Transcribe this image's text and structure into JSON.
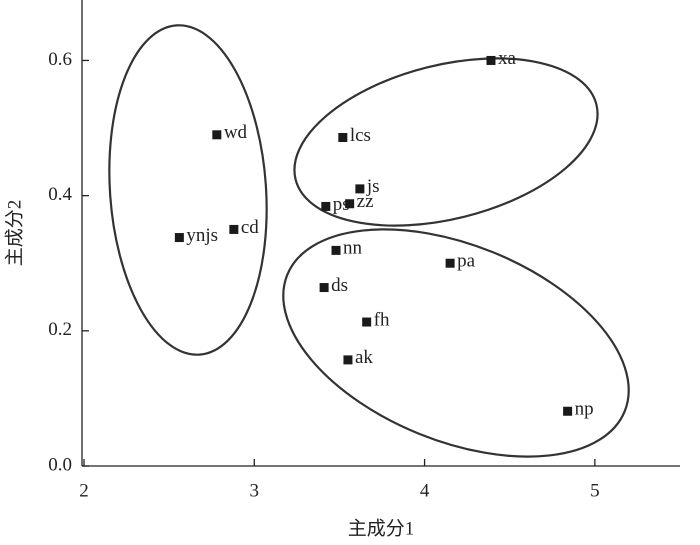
{
  "chart_data": {
    "type": "scatter",
    "xlabel": "主成分1",
    "ylabel": "主成分2",
    "x": [
      4.39,
      2.78,
      3.52,
      3.62,
      3.42,
      3.56,
      2.56,
      2.88,
      3.48,
      4.15,
      3.41,
      3.66,
      3.55,
      4.84
    ],
    "values": [
      0.6,
      0.49,
      0.486,
      0.41,
      0.384,
      0.388,
      0.338,
      0.35,
      0.319,
      0.3,
      0.264,
      0.213,
      0.157,
      0.081
    ],
    "point_labels": [
      "xa",
      "wd",
      "lcs",
      "js",
      "ps",
      "zz",
      "ynjs",
      "cd",
      "nn",
      "pa",
      "ds",
      "fh",
      "ak",
      "np"
    ],
    "color": "#1a1a1a",
    "xlim": [
      2,
      5.5
    ],
    "ylim": [
      0,
      0.685
    ],
    "xticks": [
      2,
      3,
      4,
      5
    ],
    "yticks": [
      {
        "value": 0,
        "label": "0.0"
      },
      0.2,
      0.4,
      0.6
    ]
  }
}
